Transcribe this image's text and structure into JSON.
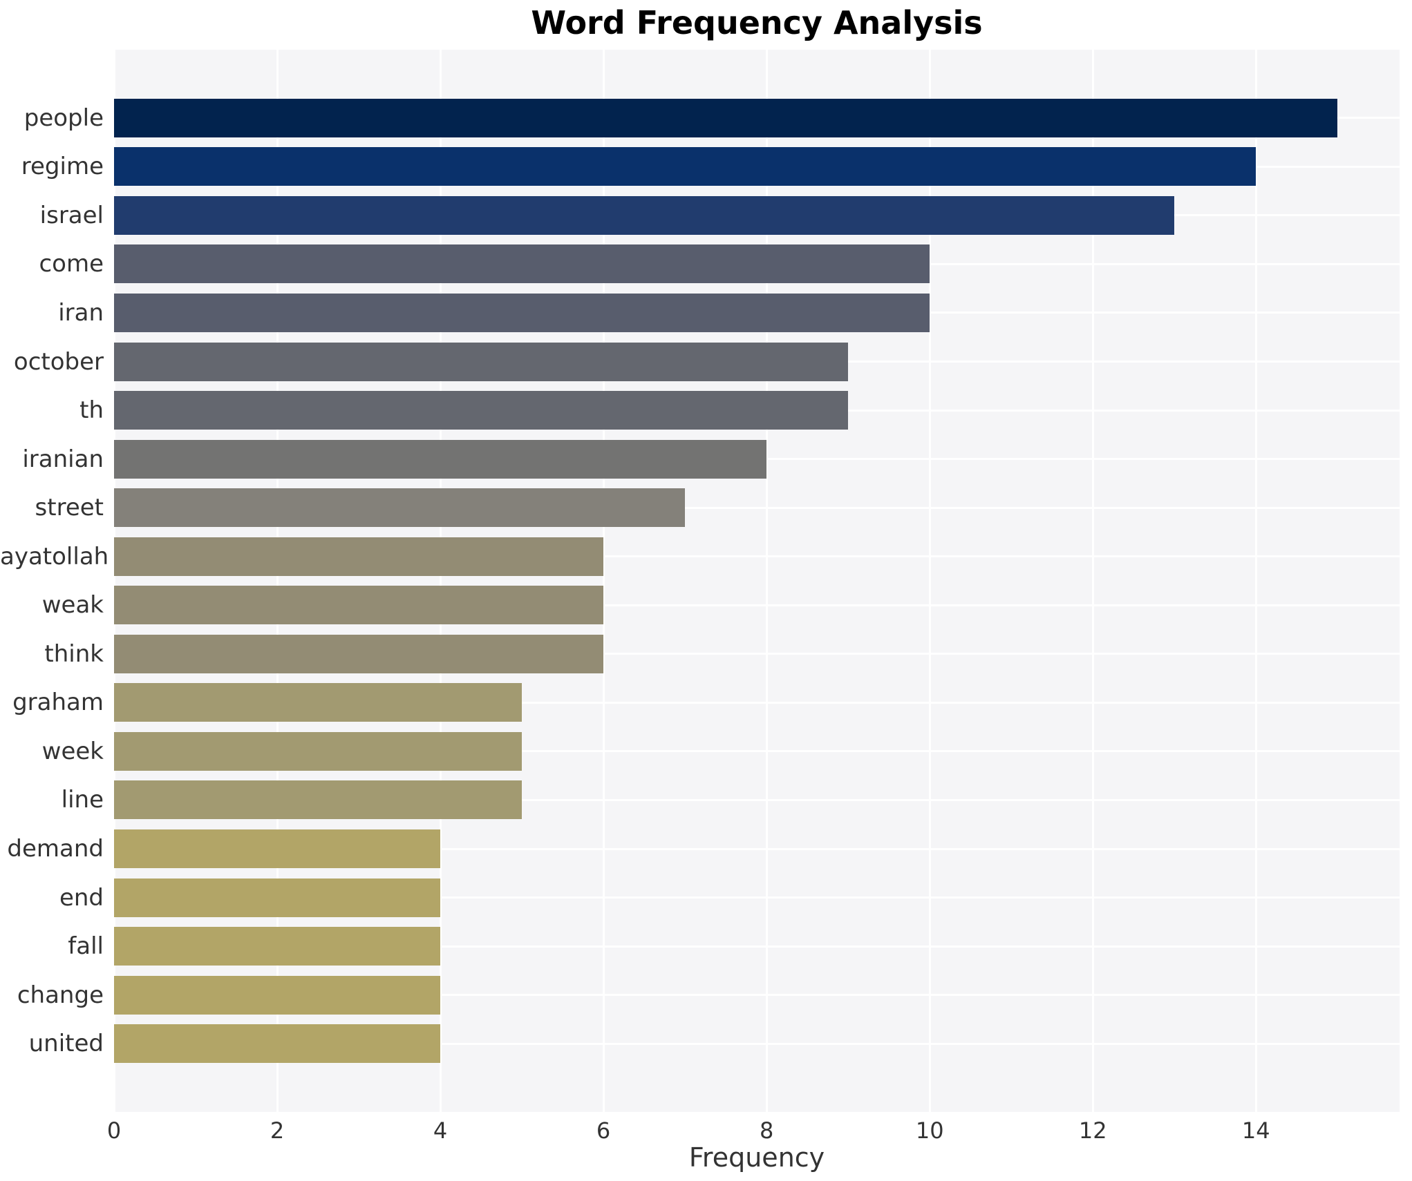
{
  "chart_data": {
    "type": "bar",
    "orientation": "horizontal",
    "title": "Word Frequency Analysis",
    "xlabel": "Frequency",
    "ylabel": "",
    "categories": [
      "people",
      "regime",
      "israel",
      "come",
      "iran",
      "october",
      "th",
      "iranian",
      "street",
      "ayatollah",
      "weak",
      "think",
      "graham",
      "week",
      "line",
      "demand",
      "end",
      "fall",
      "change",
      "united"
    ],
    "values": [
      15,
      14,
      13,
      10,
      10,
      9,
      9,
      8,
      7,
      6,
      6,
      6,
      5,
      5,
      5,
      4,
      4,
      4,
      4,
      4
    ],
    "bar_colors": [
      "#02234E",
      "#0A316B",
      "#213C6E",
      "#585D6D",
      "#585D6D",
      "#64676F",
      "#64676F",
      "#737372",
      "#84817A",
      "#938C74",
      "#938C74",
      "#938C74",
      "#A29A71",
      "#A29A71",
      "#A29A71",
      "#B2A567",
      "#B2A567",
      "#B2A567",
      "#B2A567",
      "#B2A567"
    ],
    "xlim": [
      0,
      15.76
    ],
    "xticks": [
      0,
      2,
      4,
      6,
      8,
      10,
      12,
      14
    ],
    "grid": true,
    "legend": false,
    "colors": {
      "plot_background": "#F5F5F7",
      "gridline": "#FFFFFF",
      "tick_text": "#333333",
      "title_text": "#000000"
    }
  }
}
